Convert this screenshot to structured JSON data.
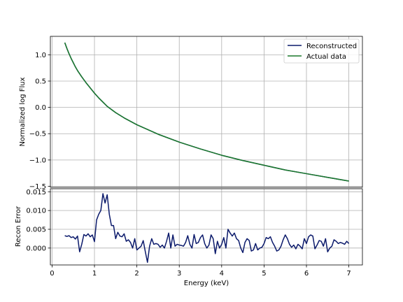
{
  "chart_data": [
    {
      "type": "line",
      "panel": "top",
      "xlabel": "",
      "ylabel": "Normalized log Flux",
      "xlim": [
        -0.04,
        7.32
      ],
      "ylim": [
        -1.52,
        1.35
      ],
      "yticks": [
        1.0,
        0.5,
        0.0,
        -0.5,
        -1.0,
        -1.5
      ],
      "ytick_labels": [
        "1.0",
        "0.5",
        "0.0",
        "−0.5",
        "−1.0",
        "−1.5"
      ],
      "grid": true,
      "legend": {
        "placement": "top-right",
        "entries": [
          "Reconstructed",
          "Actual data"
        ]
      },
      "x": [
        0.3,
        0.35,
        0.4,
        0.45,
        0.5,
        0.55,
        0.6,
        0.7,
        0.8,
        0.9,
        1.0,
        1.1,
        1.2,
        1.3,
        1.5,
        1.7,
        2.0,
        2.5,
        3.0,
        3.5,
        4.0,
        4.5,
        5.0,
        5.5,
        6.0,
        6.5,
        7.0
      ],
      "series": [
        {
          "name": "Reconstructed",
          "color": "#0b1a6b",
          "values": [
            1.23,
            1.12,
            1.02,
            0.93,
            0.85,
            0.77,
            0.7,
            0.58,
            0.47,
            0.37,
            0.27,
            0.18,
            0.1,
            0.02,
            -0.1,
            -0.2,
            -0.33,
            -0.51,
            -0.66,
            -0.79,
            -0.91,
            -1.01,
            -1.1,
            -1.19,
            -1.26,
            -1.33,
            -1.4
          ]
        },
        {
          "name": "Actual data",
          "color": "#1b7a2c",
          "values": [
            1.23,
            1.12,
            1.02,
            0.93,
            0.85,
            0.77,
            0.7,
            0.58,
            0.47,
            0.37,
            0.27,
            0.18,
            0.1,
            0.02,
            -0.1,
            -0.2,
            -0.33,
            -0.51,
            -0.66,
            -0.79,
            -0.91,
            -1.01,
            -1.1,
            -1.19,
            -1.26,
            -1.33,
            -1.4
          ]
        }
      ]
    },
    {
      "type": "line",
      "panel": "bottom",
      "xlabel": "Energy (keV)",
      "ylabel": "Recon Error",
      "xlim": [
        -0.04,
        7.32
      ],
      "ylim": [
        -0.0045,
        0.0158
      ],
      "xticks": [
        0,
        1,
        2,
        3,
        4,
        5,
        6,
        7
      ],
      "xtick_labels": [
        "0",
        "1",
        "2",
        "3",
        "4",
        "5",
        "6",
        "7"
      ],
      "yticks": [
        0.0,
        0.005,
        0.01,
        0.015
      ],
      "ytick_labels": [
        "0.000",
        "0.005",
        "0.010",
        "0.015"
      ],
      "grid": true,
      "series": [
        {
          "name": "Reconstructed",
          "color": "#0b1a6b",
          "x": [
            0.3,
            0.35,
            0.4,
            0.45,
            0.5,
            0.55,
            0.6,
            0.65,
            0.7,
            0.75,
            0.8,
            0.85,
            0.9,
            0.95,
            1.0,
            1.05,
            1.1,
            1.15,
            1.2,
            1.25,
            1.3,
            1.35,
            1.4,
            1.45,
            1.5,
            1.55,
            1.6,
            1.65,
            1.7,
            1.75,
            1.8,
            1.85,
            1.9,
            1.95,
            2.0,
            2.05,
            2.1,
            2.15,
            2.2,
            2.25,
            2.3,
            2.35,
            2.4,
            2.45,
            2.5,
            2.55,
            2.6,
            2.65,
            2.7,
            2.75,
            2.8,
            2.85,
            2.9,
            2.95,
            3.0,
            3.05,
            3.1,
            3.15,
            3.2,
            3.25,
            3.3,
            3.35,
            3.4,
            3.45,
            3.5,
            3.55,
            3.6,
            3.65,
            3.7,
            3.75,
            3.8,
            3.85,
            3.9,
            3.95,
            4.0,
            4.05,
            4.1,
            4.15,
            4.2,
            4.25,
            4.3,
            4.35,
            4.4,
            4.45,
            4.5,
            4.55,
            4.6,
            4.65,
            4.7,
            4.75,
            4.8,
            4.85,
            4.9,
            4.95,
            5.0,
            5.05,
            5.1,
            5.15,
            5.2,
            5.25,
            5.3,
            5.35,
            5.4,
            5.45,
            5.5,
            5.55,
            5.6,
            5.65,
            5.7,
            5.75,
            5.8,
            5.85,
            5.9,
            5.95,
            6.0,
            6.05,
            6.1,
            6.15,
            6.2,
            6.25,
            6.3,
            6.35,
            6.4,
            6.45,
            6.5,
            6.55,
            6.6,
            6.65,
            6.7,
            6.75,
            6.8,
            6.85,
            6.9,
            6.95,
            7.0
          ],
          "values": [
            0.0033,
            0.0031,
            0.0033,
            0.0028,
            0.003,
            0.0024,
            0.0032,
            -0.001,
            0.001,
            0.0036,
            0.0032,
            0.0038,
            0.003,
            0.0035,
            0.0017,
            0.0075,
            0.009,
            0.01,
            0.0145,
            0.012,
            0.0142,
            0.009,
            0.006,
            0.006,
            0.0025,
            0.0042,
            0.0032,
            0.003,
            0.0038,
            0.0018,
            0.0022,
            0.0015,
            0.0,
            0.0025,
            -0.0005,
            0.0,
            0.0005,
            0.002,
            -0.001,
            -0.0038,
            0.0005,
            0.0025,
            0.001,
            0.0012,
            0.001,
            0.0002,
            0.0008,
            0.0,
            0.0018,
            0.004,
            0.0,
            0.0035,
            0.0005,
            0.001,
            0.0008,
            0.0007,
            0.0005,
            0.0015,
            0.0033,
            0.001,
            0.0,
            0.0036,
            0.0012,
            0.0015,
            0.0028,
            0.0035,
            0.0012,
            0.0,
            0.0008,
            0.0035,
            0.0025,
            -0.0015,
            0.0018,
            0.0,
            0.001,
            0.0028,
            0.0,
            0.005,
            0.004,
            0.0032,
            0.004,
            0.0025,
            0.002,
            0.0,
            -0.0012,
            0.0015,
            0.0025,
            0.002,
            -0.0008,
            -0.0005,
            0.0012,
            -0.0005,
            0.0,
            0.0002,
            0.0012,
            0.0028,
            0.0025,
            0.003,
            0.0015,
            0.0005,
            -0.0008,
            -0.0005,
            0.0005,
            0.0022,
            0.0035,
            0.0025,
            0.001,
            0.0002,
            0.0008,
            -0.0002,
            0.001,
            0.0005,
            -0.0002,
            0.0025,
            0.0012,
            0.003,
            0.0035,
            0.0032,
            -0.0002,
            0.0008,
            0.002,
            0.0018,
            0.0005,
            0.0025,
            -0.001,
            0.0,
            0.0005,
            0.0022,
            0.0018,
            0.0012,
            0.0015,
            0.0013,
            0.001,
            0.0018,
            0.0012
          ]
        }
      ]
    }
  ]
}
